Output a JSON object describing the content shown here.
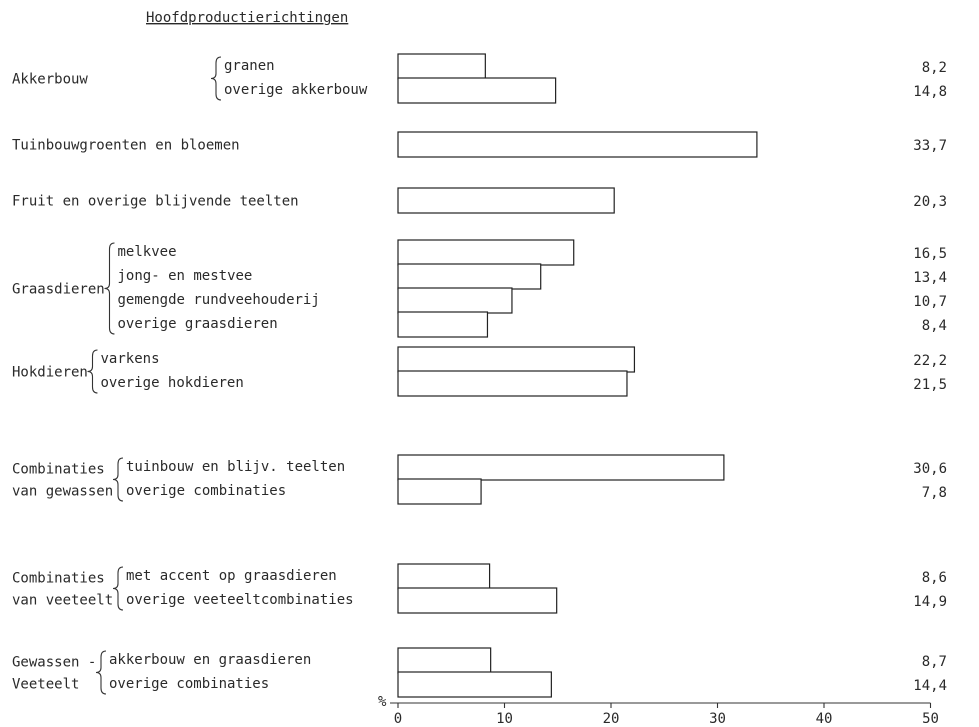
{
  "chart_data": {
    "type": "bar",
    "orientation": "horizontal",
    "title": "Hoofdproductierichtingen",
    "xlabel": "%",
    "xlim": [
      0,
      50
    ],
    "xticks": [
      0,
      10,
      20,
      30,
      40,
      50
    ],
    "groups": [
      {
        "label": [
          "Akkerbouw"
        ],
        "items": [
          {
            "label": "granen",
            "value": 8.2,
            "value_label": "8,2"
          },
          {
            "label": "overige akkerbouw",
            "value": 14.8,
            "value_label": "14,8"
          }
        ]
      },
      {
        "label": [
          "Tuinbouwgroenten en bloemen"
        ],
        "items": [
          {
            "label": "",
            "value": 33.7,
            "value_label": "33,7"
          }
        ]
      },
      {
        "label": [
          "Fruit en overige blijvende teelten"
        ],
        "items": [
          {
            "label": "",
            "value": 20.3,
            "value_label": "20,3"
          }
        ]
      },
      {
        "label": [
          "Graasdieren"
        ],
        "items": [
          {
            "label": "melkvee",
            "value": 16.5,
            "value_label": "16,5"
          },
          {
            "label": "jong- en mestvee",
            "value": 13.4,
            "value_label": "13,4"
          },
          {
            "label": "gemengde rundveehouderij",
            "value": 10.7,
            "value_label": "10,7"
          },
          {
            "label": "overige graasdieren",
            "value": 8.4,
            "value_label": "8,4"
          }
        ]
      },
      {
        "label": [
          "Hokdieren"
        ],
        "items": [
          {
            "label": "varkens",
            "value": 22.2,
            "value_label": "22,2"
          },
          {
            "label": "overige hokdieren",
            "value": 21.5,
            "value_label": "21,5"
          }
        ]
      },
      {
        "label": [
          "Combinaties",
          "van gewassen"
        ],
        "items": [
          {
            "label": "tuinbouw en blijv. teelten",
            "value": 30.6,
            "value_label": "30,6"
          },
          {
            "label": "overige combinaties",
            "value": 7.8,
            "value_label": "7,8"
          }
        ]
      },
      {
        "label": [
          "Combinaties",
          "van veeteelt"
        ],
        "items": [
          {
            "label": "met accent op graasdieren",
            "value": 8.6,
            "value_label": "8,6"
          },
          {
            "label": "overige veeteeltcombinaties",
            "value": 14.9,
            "value_label": "14,9"
          }
        ]
      },
      {
        "label": [
          "Gewassen -",
          "Veeteelt"
        ],
        "items": [
          {
            "label": "akkerbouw en graasdieren",
            "value": 8.7,
            "value_label": "8,7"
          },
          {
            "label": "overige combinaties",
            "value": 14.4,
            "value_label": "14,4"
          }
        ]
      }
    ]
  }
}
